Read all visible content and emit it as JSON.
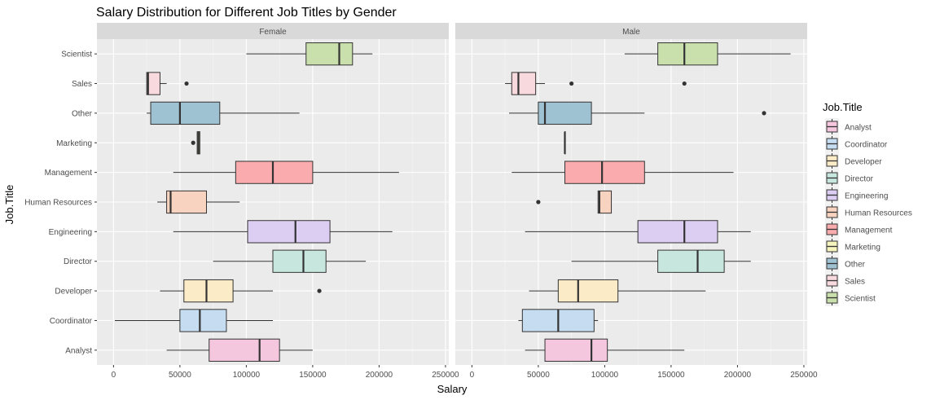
{
  "chart_data": {
    "type": "boxplot",
    "title": "Salary Distribution for Different Job Titles by Gender",
    "xlabel": "Salary",
    "ylabel": "Job.Title",
    "xlim": [
      -12500,
      252500
    ],
    "xticks": [
      0,
      50000,
      100000,
      150000,
      200000,
      250000
    ],
    "xtick_labels": [
      "0",
      "50000",
      "100000",
      "150000",
      "200000",
      "250000"
    ],
    "categories": [
      "Analyst",
      "Coordinator",
      "Developer",
      "Director",
      "Engineering",
      "Human Resources",
      "Management",
      "Marketing",
      "Other",
      "Sales",
      "Scientist"
    ],
    "colors": {
      "Analyst": "#F4C7DF",
      "Coordinator": "#C6DCF0",
      "Developer": "#FBEBC6",
      "Director": "#C7E6DD",
      "Engineering": "#DCCDF2",
      "Human Resources": "#F8D3BF",
      "Management": "#F9ABAE",
      "Marketing": "#F6F3BC",
      "Other": "#9FC2D3",
      "Sales": "#F8D9DD",
      "Scientist": "#C9DFAC"
    },
    "legend": {
      "title": "Job.Title",
      "position": "right",
      "entries": [
        "Analyst",
        "Coordinator",
        "Developer",
        "Director",
        "Engineering",
        "Human Resources",
        "Management",
        "Marketing",
        "Other",
        "Sales",
        "Scientist"
      ]
    },
    "grid": true,
    "facets": [
      {
        "name": "Female",
        "boxes": [
          {
            "category": "Analyst",
            "min": 40000,
            "q1": 72000,
            "median": 110000,
            "q3": 125000,
            "max": 150000,
            "outliers": []
          },
          {
            "category": "Coordinator",
            "min": 1000,
            "q1": 50000,
            "median": 65000,
            "q3": 85000,
            "max": 120000,
            "outliers": []
          },
          {
            "category": "Developer",
            "min": 35000,
            "q1": 53000,
            "median": 70000,
            "q3": 90000,
            "max": 120000,
            "outliers": [
              155000
            ]
          },
          {
            "category": "Director",
            "min": 75000,
            "q1": 120000,
            "median": 143000,
            "q3": 160000,
            "max": 190000,
            "outliers": []
          },
          {
            "category": "Engineering",
            "min": 45000,
            "q1": 101000,
            "median": 137000,
            "q3": 163000,
            "max": 210000,
            "outliers": []
          },
          {
            "category": "Human Resources",
            "min": 33000,
            "q1": 40000,
            "median": 43000,
            "q3": 70000,
            "max": 95000,
            "outliers": []
          },
          {
            "category": "Management",
            "min": 45000,
            "q1": 92000,
            "median": 120000,
            "q3": 150000,
            "max": 215000,
            "outliers": []
          },
          {
            "category": "Marketing",
            "min": 63000,
            "q1": 63000,
            "median": 64000,
            "q3": 65000,
            "max": 65000,
            "outliers": [
              60000
            ]
          },
          {
            "category": "Other",
            "min": 25000,
            "q1": 28000,
            "median": 50000,
            "q3": 80000,
            "max": 140000,
            "outliers": []
          },
          {
            "category": "Sales",
            "min": 25000,
            "q1": 25000,
            "median": 26000,
            "q3": 35000,
            "max": 40000,
            "outliers": [
              55000
            ]
          },
          {
            "category": "Scientist",
            "min": 100000,
            "q1": 145000,
            "median": 170000,
            "q3": 180000,
            "max": 195000,
            "outliers": []
          }
        ]
      },
      {
        "name": "Male",
        "boxes": [
          {
            "category": "Analyst",
            "min": 40000,
            "q1": 55000,
            "median": 90000,
            "q3": 102000,
            "max": 160000,
            "outliers": []
          },
          {
            "category": "Coordinator",
            "min": 35000,
            "q1": 38000,
            "median": 65000,
            "q3": 92000,
            "max": 95000,
            "outliers": []
          },
          {
            "category": "Developer",
            "min": 43000,
            "q1": 65000,
            "median": 80000,
            "q3": 110000,
            "max": 176000,
            "outliers": []
          },
          {
            "category": "Director",
            "min": 75000,
            "q1": 140000,
            "median": 170000,
            "q3": 190000,
            "max": 210000,
            "outliers": []
          },
          {
            "category": "Engineering",
            "min": 40000,
            "q1": 125000,
            "median": 160000,
            "q3": 185000,
            "max": 210000,
            "outliers": []
          },
          {
            "category": "Human Resources",
            "min": 95000,
            "q1": 95000,
            "median": 96000,
            "q3": 105000,
            "max": 105000,
            "outliers": [
              50000
            ]
          },
          {
            "category": "Management",
            "min": 30000,
            "q1": 70000,
            "median": 98000,
            "q3": 130000,
            "max": 197000,
            "outliers": []
          },
          {
            "category": "Marketing",
            "min": 70000,
            "q1": 70000,
            "median": 70000,
            "q3": 70000,
            "max": 70000,
            "outliers": []
          },
          {
            "category": "Other",
            "min": 28000,
            "q1": 50000,
            "median": 55000,
            "q3": 90000,
            "max": 130000,
            "outliers": [
              220000
            ]
          },
          {
            "category": "Sales",
            "min": 25000,
            "q1": 30000,
            "median": 35000,
            "q3": 48000,
            "max": 55000,
            "outliers": [
              75000,
              160000
            ]
          },
          {
            "category": "Scientist",
            "min": 115000,
            "q1": 140000,
            "median": 160000,
            "q3": 185000,
            "max": 240000,
            "outliers": []
          }
        ]
      }
    ]
  }
}
